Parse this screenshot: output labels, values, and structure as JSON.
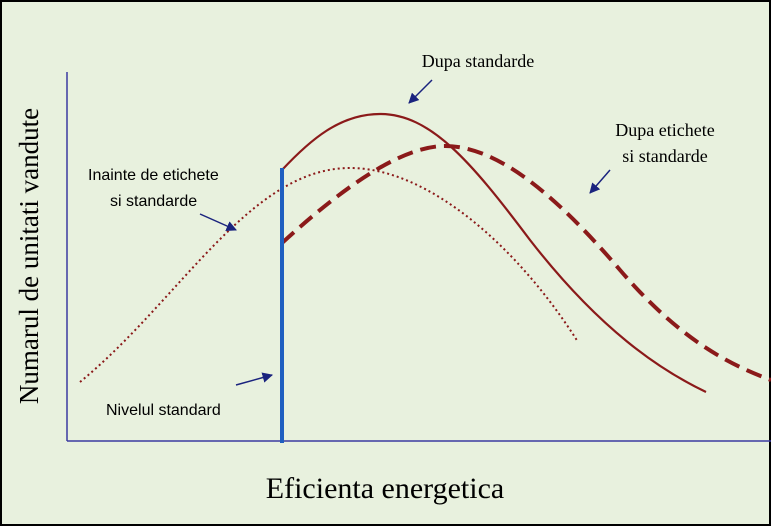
{
  "y_axis_label": "Numarul de unitati vandute",
  "x_axis_label": "Eficienta energetica",
  "annotations": {
    "after_standards": "Dupa standarde",
    "after_labels_and_standards": [
      "Dupa etichete",
      "si standarde"
    ],
    "before_labels_and_standards": [
      "Inainte de etichete",
      "si standarde"
    ],
    "standard_level": "Nivelul standard"
  }
}
